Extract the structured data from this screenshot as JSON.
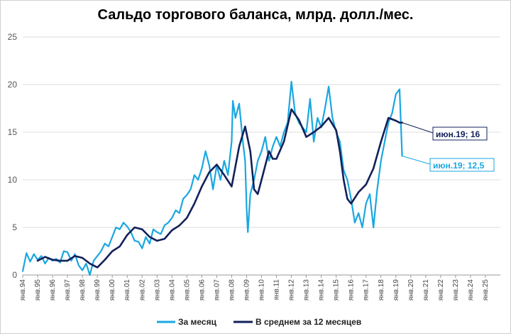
{
  "chart_data": {
    "type": "line",
    "title": "Сальдо торгового баланса, млрд. долл./мес.",
    "ylim": [
      0,
      25
    ],
    "yticks": [
      "0",
      "5",
      "10",
      "15",
      "20",
      "25"
    ],
    "xlim": [
      1994.0,
      2026.0
    ],
    "xticks": [
      "янв.94",
      "янв.95",
      "янв.96",
      "янв.97",
      "янв.98",
      "янв.99",
      "янв.00",
      "янв.01",
      "янв.02",
      "янв.03",
      "янв.04",
      "янв.05",
      "янв.06",
      "янв.07",
      "янв.08",
      "янв.09",
      "янв.10",
      "янв.11",
      "янв.12",
      "янв.13",
      "янв.14",
      "янв.15",
      "янв.16",
      "янв.17",
      "янв.18",
      "янв.19",
      "янв.20",
      "янв.21",
      "янв.22",
      "янв.23",
      "янв.24",
      "янв.25"
    ],
    "grid": true,
    "legend_position": "bottom",
    "series": [
      {
        "name": "За месяц",
        "color": "#1aa7e0",
        "x": [
          1994.0,
          1994.25,
          1994.5,
          1994.75,
          1995.0,
          1995.25,
          1995.5,
          1995.75,
          1996.0,
          1996.25,
          1996.5,
          1996.75,
          1997.0,
          1997.25,
          1997.5,
          1997.75,
          1998.0,
          1998.25,
          1998.5,
          1998.75,
          1999.0,
          1999.25,
          1999.5,
          1999.75,
          2000.0,
          2000.25,
          2000.5,
          2000.75,
          2001.0,
          2001.25,
          2001.5,
          2001.75,
          2002.0,
          2002.25,
          2002.5,
          2002.75,
          2003.0,
          2003.25,
          2003.5,
          2003.75,
          2004.0,
          2004.25,
          2004.5,
          2004.75,
          2005.0,
          2005.25,
          2005.5,
          2005.75,
          2006.0,
          2006.25,
          2006.5,
          2006.75,
          2007.0,
          2007.25,
          2007.5,
          2007.75,
          2008.0,
          2008.08,
          2008.25,
          2008.5,
          2008.75,
          2008.9,
          2009.0,
          2009.08,
          2009.25,
          2009.5,
          2009.75,
          2010.0,
          2010.25,
          2010.5,
          2010.75,
          2011.0,
          2011.25,
          2011.5,
          2011.75,
          2012.0,
          2012.25,
          2012.5,
          2012.75,
          2013.0,
          2013.25,
          2013.5,
          2013.75,
          2014.0,
          2014.25,
          2014.5,
          2014.75,
          2015.0,
          2015.25,
          2015.5,
          2015.75,
          2016.0,
          2016.25,
          2016.5,
          2016.75,
          2017.0,
          2017.25,
          2017.5,
          2017.75,
          2018.0,
          2018.25,
          2018.5,
          2018.75,
          2019.0,
          2019.25,
          2019.42
        ],
        "y": [
          0.4,
          2.3,
          1.4,
          2.2,
          1.6,
          2.0,
          1.2,
          1.8,
          1.5,
          1.7,
          1.3,
          2.5,
          2.4,
          1.5,
          2.2,
          1.0,
          0.5,
          1.2,
          0.0,
          1.5,
          2.0,
          2.5,
          3.3,
          3.0,
          4.0,
          5.0,
          4.8,
          5.5,
          5.1,
          4.5,
          3.6,
          3.5,
          2.8,
          4.0,
          3.3,
          4.8,
          4.5,
          4.3,
          5.2,
          5.5,
          6.0,
          6.8,
          6.5,
          8.0,
          8.4,
          9.0,
          10.5,
          10.0,
          11.2,
          13.0,
          11.5,
          9.0,
          11.5,
          10.0,
          12.0,
          10.5,
          14.0,
          18.3,
          16.5,
          18.0,
          14.0,
          12.0,
          7.0,
          4.5,
          8.5,
          10.0,
          12.0,
          13.0,
          14.5,
          12.0,
          13.5,
          14.5,
          13.5,
          15.0,
          16.0,
          20.3,
          17.0,
          16.0,
          15.5,
          15.0,
          18.5,
          14.0,
          16.5,
          15.5,
          17.5,
          19.8,
          16.5,
          15.0,
          14.0,
          11.0,
          10.0,
          8.0,
          5.5,
          6.5,
          5.0,
          7.5,
          8.5,
          5.0,
          9.0,
          12.0,
          14.0,
          16.0,
          17.0,
          19.0,
          19.5,
          12.5
        ]
      },
      {
        "name": "В среднем за 12 месяцев",
        "color": "#12205a",
        "x": [
          1995.0,
          1995.5,
          1996.0,
          1996.5,
          1997.0,
          1997.5,
          1998.0,
          1998.5,
          1999.0,
          1999.5,
          2000.0,
          2000.5,
          2001.0,
          2001.5,
          2002.0,
          2002.5,
          2003.0,
          2003.5,
          2004.0,
          2004.5,
          2005.0,
          2005.5,
          2006.0,
          2006.5,
          2007.0,
          2007.5,
          2008.0,
          2008.5,
          2008.9,
          2009.25,
          2009.5,
          2009.75,
          2010.0,
          2010.5,
          2010.75,
          2011.0,
          2011.5,
          2012.0,
          2012.5,
          2013.0,
          2013.5,
          2014.0,
          2014.5,
          2015.0,
          2015.25,
          2015.5,
          2015.75,
          2016.0,
          2016.5,
          2017.0,
          2017.5,
          2018.0,
          2018.5,
          2019.0,
          2019.25,
          2019.42
        ],
        "y": [
          1.5,
          1.9,
          1.6,
          1.5,
          1.5,
          2.0,
          1.8,
          1.2,
          0.8,
          1.6,
          2.5,
          3.0,
          4.2,
          5.0,
          4.8,
          4.0,
          3.6,
          3.8,
          4.7,
          5.2,
          6.0,
          7.5,
          9.3,
          10.8,
          11.6,
          10.5,
          9.3,
          13.5,
          15.6,
          13.0,
          9.0,
          8.5,
          10.0,
          13.0,
          12.2,
          12.2,
          14.0,
          17.4,
          16.3,
          14.5,
          15.0,
          15.6,
          16.5,
          15.2,
          13.0,
          10.0,
          8.0,
          7.5,
          8.7,
          9.5,
          11.2,
          14.0,
          16.5,
          16.2,
          16.0,
          16.0
        ]
      }
    ]
  },
  "annotations": [
    {
      "text": "июн.19; 16",
      "color": "#12205a"
    },
    {
      "text": "июн.19; 12,5",
      "color": "#1aa7e0"
    }
  ],
  "legend": [
    {
      "label": "За месяц",
      "color": "#1aa7e0"
    },
    {
      "label": "В среднем за 12 месяцев",
      "color": "#12205a"
    }
  ]
}
